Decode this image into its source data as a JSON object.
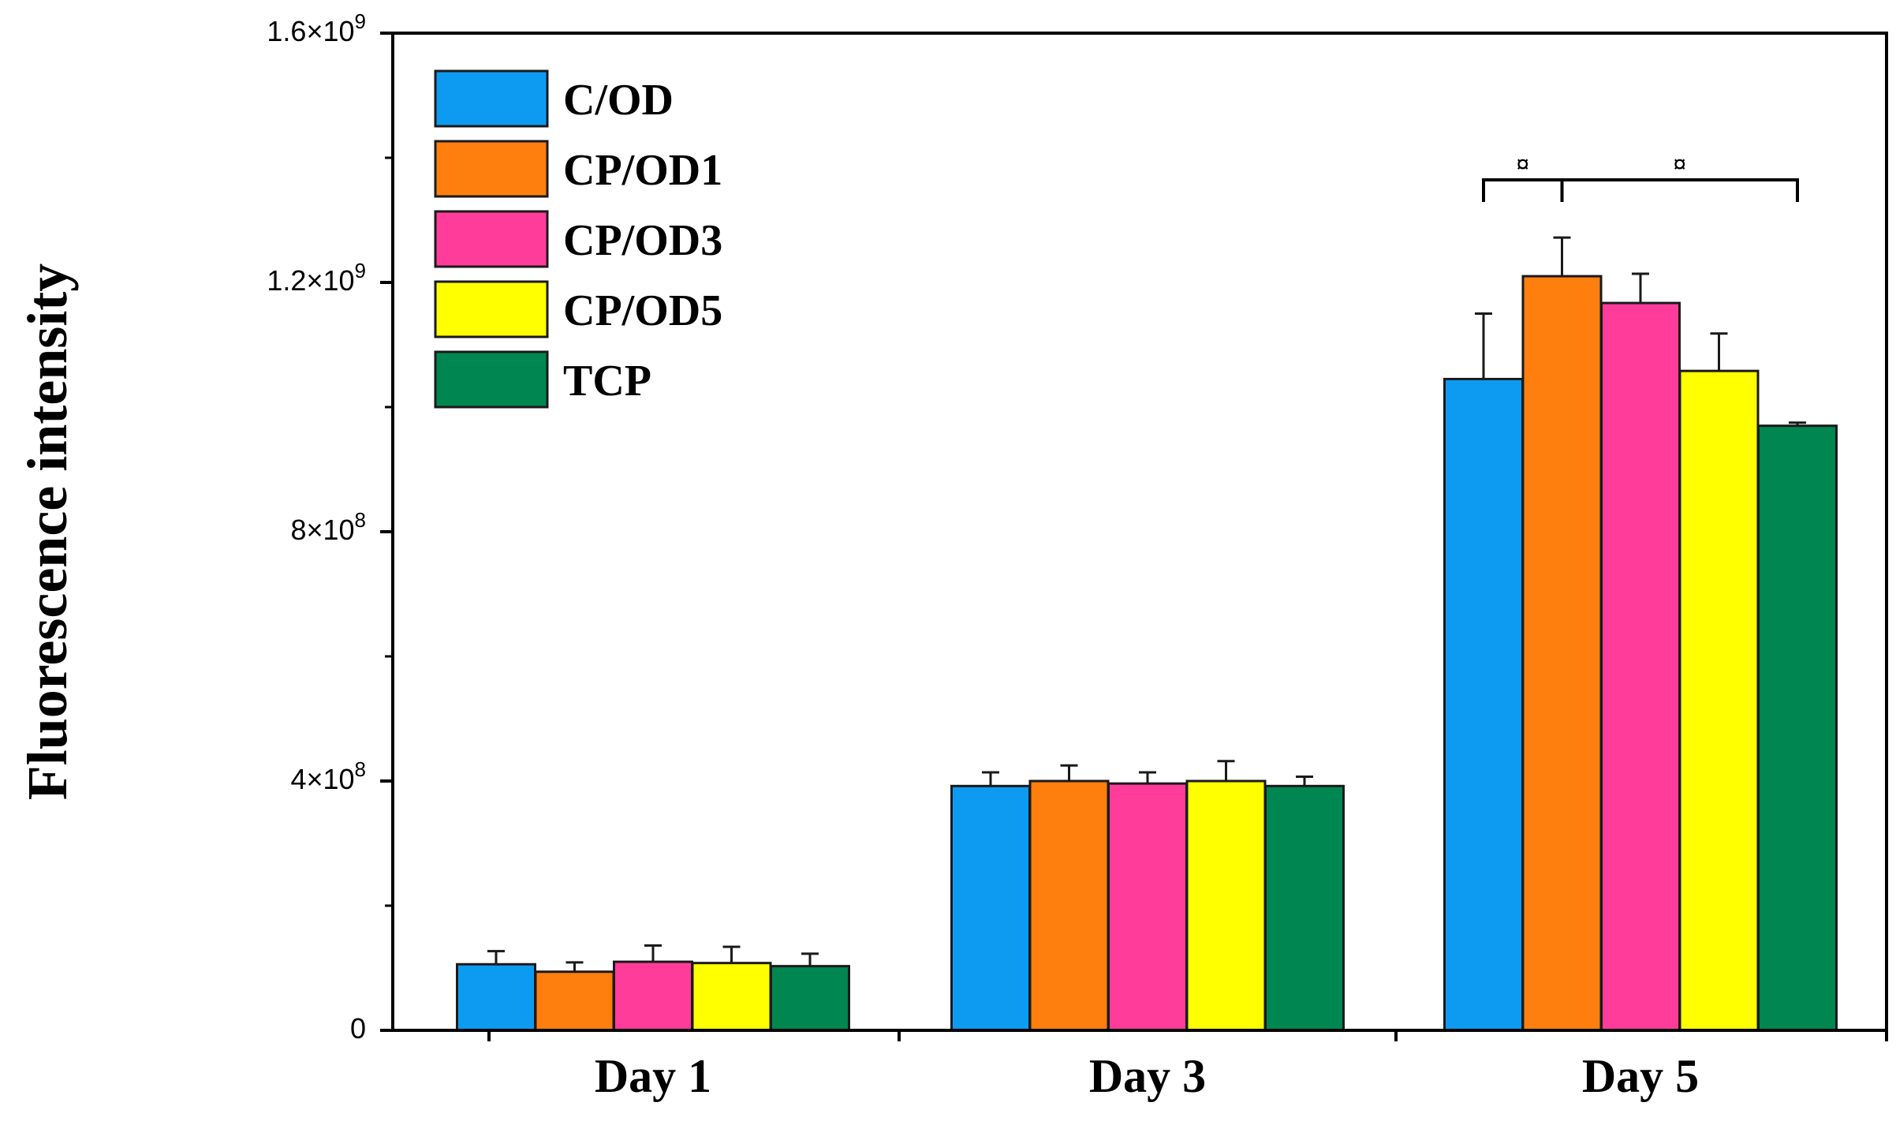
{
  "chart_data": {
    "type": "bar",
    "categories": [
      "Day 1",
      "Day 3",
      "Day 5"
    ],
    "series": [
      {
        "name": "C/OD",
        "color": "#0d9bf2",
        "values": [
          106000000,
          392000000,
          1045000000
        ],
        "errors": [
          21000000,
          22000000,
          105000000
        ]
      },
      {
        "name": "CP/OD1",
        "color": "#ff7f0e",
        "values": [
          94000000,
          400000000,
          1210000000
        ],
        "errors": [
          15000000,
          25000000,
          62000000
        ]
      },
      {
        "name": "CP/OD3",
        "color": "#ff3c9a",
        "values": [
          110000000,
          396000000,
          1167000000
        ],
        "errors": [
          26000000,
          18000000,
          47000000
        ]
      },
      {
        "name": "CP/OD5",
        "color": "#ffff00",
        "values": [
          108000000,
          400000000,
          1058000000
        ],
        "errors": [
          26000000,
          32000000,
          60000000
        ]
      },
      {
        "name": "TCP",
        "color": "#008751",
        "values": [
          103000000,
          392000000,
          970000000
        ],
        "errors": [
          20000000,
          15000000,
          5000000
        ]
      }
    ],
    "ylabel": "Fluorescence intensity",
    "xlabel": "",
    "ylim": [
      0,
      1600000000
    ],
    "yticks": [
      {
        "value": 0,
        "label_base": "0",
        "label_exp": ""
      },
      {
        "value": 400000000,
        "label_base": "4×10",
        "label_exp": "8"
      },
      {
        "value": 800000000,
        "label_base": "8×10",
        "label_exp": "8"
      },
      {
        "value": 1200000000,
        "label_base": "1.2×10",
        "label_exp": "9"
      },
      {
        "value": 1600000000,
        "label_base": "1.6×10",
        "label_exp": "9"
      }
    ],
    "minor_yticks": [
      200000000,
      600000000,
      1000000000,
      1400000000
    ],
    "legend_position": "top-left",
    "grid": false,
    "significance": [
      {
        "category": "Day 5",
        "from_series": 0,
        "to_series": 1,
        "label": "¤"
      },
      {
        "category": "Day 5",
        "from_series": 1,
        "to_series": 4,
        "label": "¤"
      }
    ]
  }
}
